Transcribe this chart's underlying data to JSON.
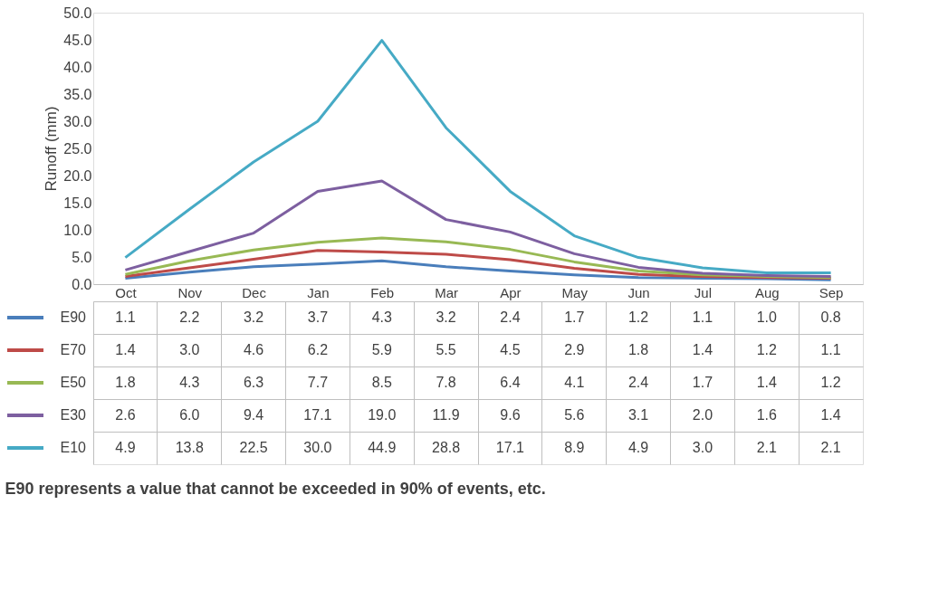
{
  "chart_data": {
    "type": "line",
    "ylabel": "Runoff (mm)",
    "categories": [
      "Oct",
      "Nov",
      "Dec",
      "Jan",
      "Feb",
      "Mar",
      "Apr",
      "May",
      "Jun",
      "Jul",
      "Aug",
      "Sep"
    ],
    "series": [
      {
        "name": "E90",
        "color": "#4a7ebb",
        "values": [
          1.1,
          2.2,
          3.2,
          3.7,
          4.3,
          3.2,
          2.4,
          1.7,
          1.2,
          1.1,
          1.0,
          0.8
        ],
        "value_labels": [
          "1.1",
          "2.2",
          "3.2",
          "3.7",
          "4.3",
          "3.2",
          "2.4",
          "1.7",
          "1.2",
          "1.1",
          "1.0",
          "0.8"
        ]
      },
      {
        "name": "E70",
        "color": "#be4b48",
        "values": [
          1.4,
          3.0,
          4.6,
          6.2,
          5.9,
          5.5,
          4.5,
          2.9,
          1.8,
          1.4,
          1.2,
          1.1
        ],
        "value_labels": [
          "1.4",
          "3.0",
          "4.6",
          "6.2",
          "5.9",
          "5.5",
          "4.5",
          "2.9",
          "1.8",
          "1.4",
          "1.2",
          "1.1"
        ]
      },
      {
        "name": "E50",
        "color": "#98b954",
        "values": [
          1.8,
          4.3,
          6.3,
          7.7,
          8.5,
          7.8,
          6.4,
          4.1,
          2.4,
          1.7,
          1.4,
          1.2
        ],
        "value_labels": [
          "1.8",
          "4.3",
          "6.3",
          "7.7",
          "8.5",
          "7.8",
          "6.4",
          "4.1",
          "2.4",
          "1.7",
          "1.4",
          "1.2"
        ]
      },
      {
        "name": "E30",
        "color": "#7d5fa0",
        "values": [
          2.6,
          6.0,
          9.4,
          17.1,
          19.0,
          11.9,
          9.6,
          5.6,
          3.1,
          2.0,
          1.6,
          1.4
        ],
        "value_labels": [
          "2.6",
          "6.0",
          "9.4",
          "17.1",
          "19.0",
          "11.9",
          "9.6",
          "5.6",
          "3.1",
          "2.0",
          "1.6",
          "1.4"
        ]
      },
      {
        "name": "E10",
        "color": "#46aac5",
        "values": [
          4.9,
          13.8,
          22.5,
          30.0,
          44.9,
          28.8,
          17.1,
          8.9,
          4.9,
          3.0,
          2.1,
          2.1
        ],
        "value_labels": [
          "4.9",
          "13.8",
          "22.5",
          "30.0",
          "44.9",
          "28.8",
          "17.1",
          "8.9",
          "4.9",
          "3.0",
          "2.1",
          "2.1"
        ]
      }
    ],
    "ylim": [
      0,
      50
    ],
    "yticks": [
      {
        "value": 0,
        "label": "0.0"
      },
      {
        "value": 5,
        "label": "5.0"
      },
      {
        "value": 10,
        "label": "10.0"
      },
      {
        "value": 15,
        "label": "15.0"
      },
      {
        "value": 20,
        "label": "20.0"
      },
      {
        "value": 25,
        "label": "25.0"
      },
      {
        "value": 30,
        "label": "30.0"
      },
      {
        "value": 35,
        "label": "35.0"
      },
      {
        "value": 40,
        "label": "40.0"
      },
      {
        "value": 45,
        "label": "45.0"
      },
      {
        "value": 50,
        "label": "50.0"
      }
    ],
    "grid": false,
    "legend": "bottom left",
    "annotations": [
      "E90 represents a value that cannot be exceeded in 90% of events, etc."
    ]
  }
}
